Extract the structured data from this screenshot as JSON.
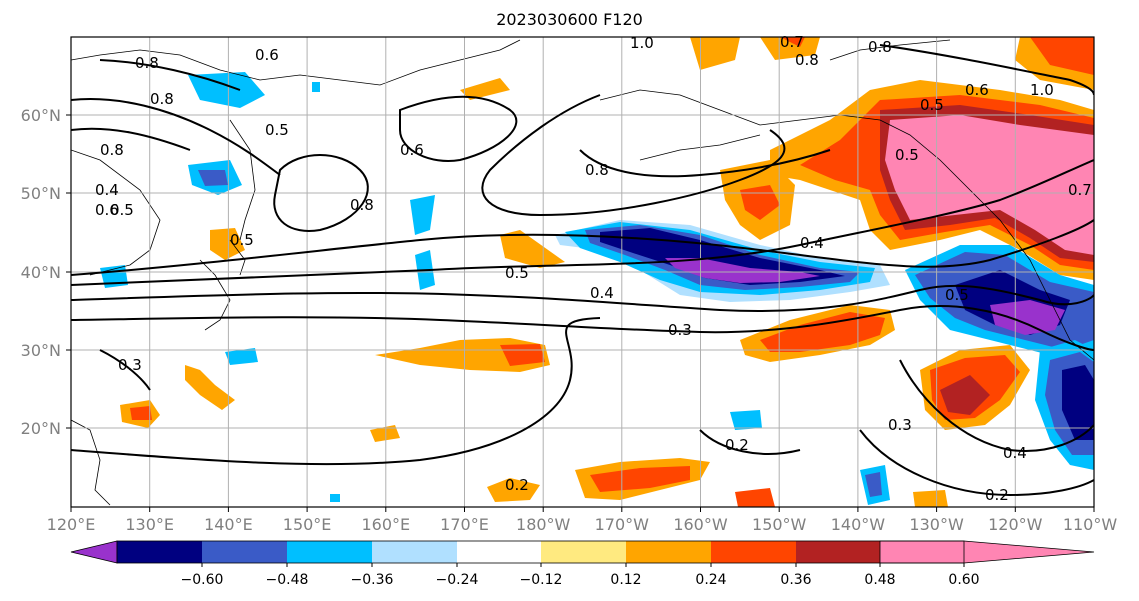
{
  "title": "2023030600 F120",
  "lon_labels": [
    "120°E",
    "130°E",
    "140°E",
    "150°E",
    "160°E",
    "170°E",
    "180°W",
    "170°W",
    "160°W",
    "150°W",
    "140°W",
    "130°W",
    "120°W",
    "110°W"
  ],
  "lat_labels": [
    "60°N",
    "50°N",
    "40°N",
    "30°N",
    "20°N"
  ],
  "colorbar": {
    "colors": [
      "#9932CC",
      "#000080",
      "#3A5BC7",
      "#00BFFF",
      "#B0E0FF",
      "#FFFFFF",
      "#FFEA80",
      "#FFA500",
      "#FF4500",
      "#B22222",
      "#FF85B3"
    ],
    "tick_labels": [
      "−0.60",
      "−0.48",
      "−0.36",
      "−0.24",
      "−0.12",
      "0.12",
      "0.24",
      "0.36",
      "0.48",
      "0.60"
    ]
  },
  "contour_labels": [
    "0.8",
    "0.8",
    "0.6",
    "0.5",
    "0.8",
    "0.6",
    "0.8",
    "0.4",
    "0.5",
    "0.6",
    "0.5",
    "0.3",
    "0.8",
    "0.8",
    "1.0",
    "0.7",
    "0.8",
    "0.5",
    "0.6",
    "1.0",
    "0.5",
    "0.4",
    "0.5",
    "0.4",
    "0.3",
    "0.5",
    "0.3",
    "0.4",
    "0.2",
    "0.2",
    "0.2",
    "0.7"
  ]
}
